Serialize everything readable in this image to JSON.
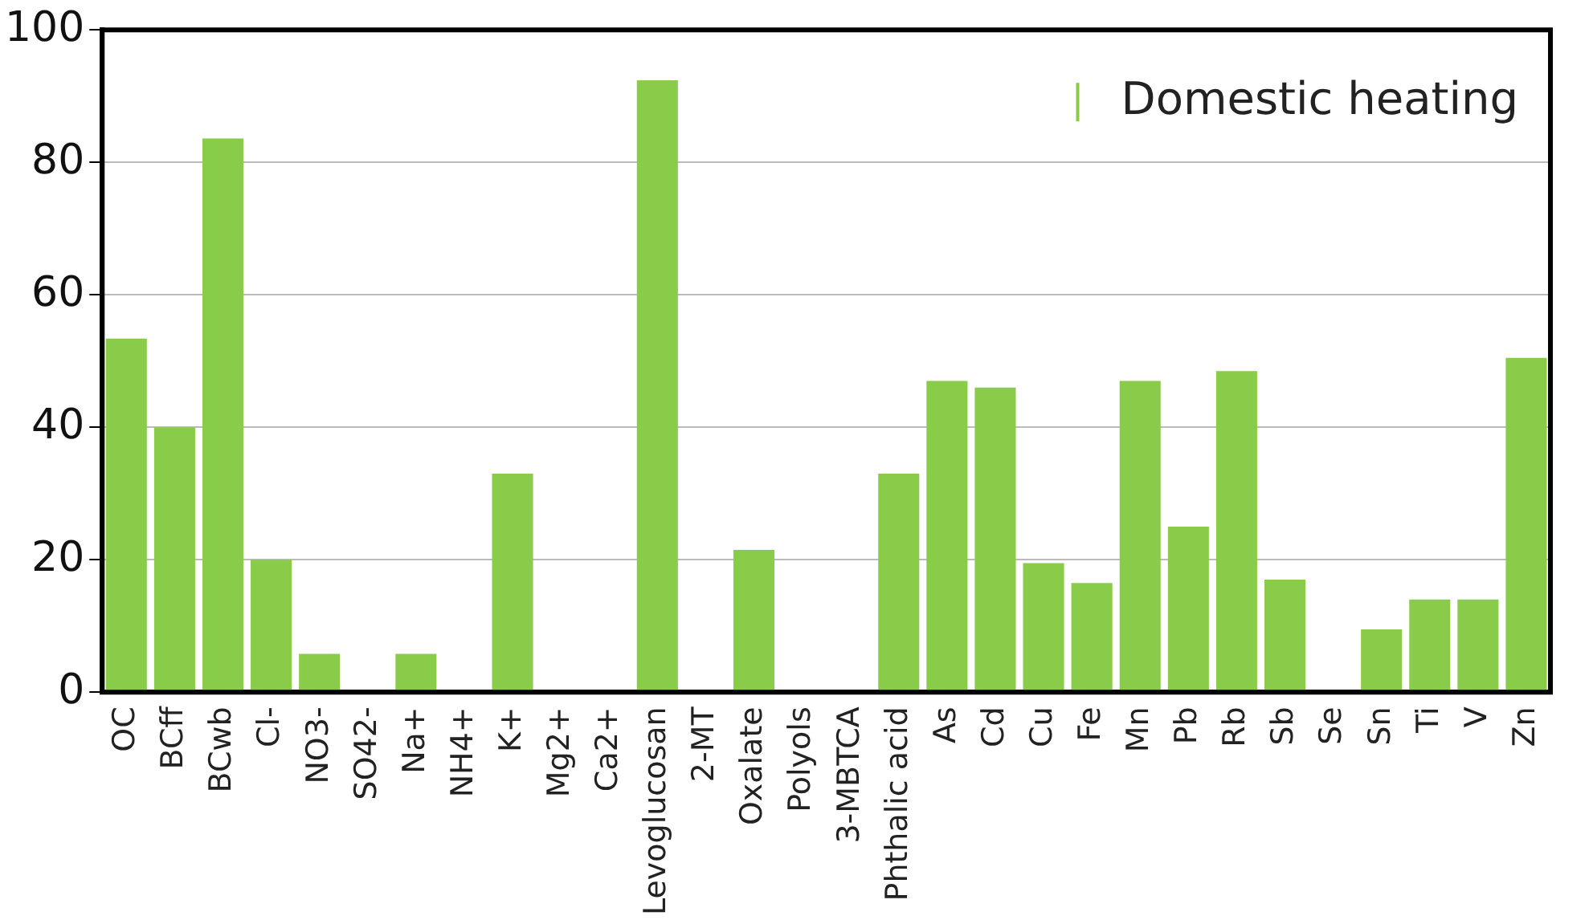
{
  "chart_data": {
    "type": "bar",
    "categories": [
      "OC",
      "BCff",
      "BCwb",
      "Cl-",
      "NO3-",
      "SO42-",
      "Na+",
      "NH4+",
      "K+",
      "Mg2+",
      "Ca2+",
      "Levoglucosan",
      "2-MT",
      "Oxalate",
      "Polyols",
      "3-MBTCA",
      "Phthalic acid",
      "As",
      "Cd",
      "Cu",
      "Fe",
      "Mn",
      "Pb",
      "Rb",
      "Sb",
      "Se",
      "Sn",
      "Ti",
      "V",
      "Zn"
    ],
    "series": [
      {
        "name": "Domestic heating",
        "color": "#88cc4a",
        "values": [
          53.4,
          40,
          83.6,
          20,
          5.8,
          0,
          5.8,
          0,
          33,
          0,
          0,
          92.4,
          0,
          21.5,
          0,
          0,
          33,
          47,
          46,
          19.5,
          16.5,
          47,
          25,
          48.5,
          17,
          0,
          9.5,
          14,
          14,
          50.5
        ]
      }
    ],
    "ylim": [
      0,
      100
    ],
    "yticks": [
      0,
      20,
      40,
      60,
      80,
      100
    ],
    "grid": "y",
    "legend": "top right"
  }
}
